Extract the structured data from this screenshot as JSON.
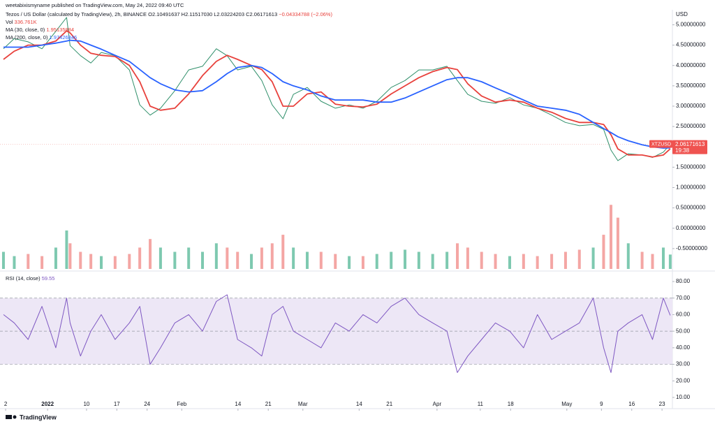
{
  "header": {
    "publisher": "weetabixismyname published on TradingView.com, May 24, 2022 09:40 UTC",
    "footer": "TradingView"
  },
  "chart_data": [
    {
      "type": "line",
      "title": "Tezos / US Dollar (calculated by TradingView), 2h, BINANCE",
      "ohlc": "O2.10491637 H2.11517030 L2.03224203 C2.06171613",
      "change": "−0.04334788 (−2.06%)",
      "y_label": "USD",
      "x": [
        -10.2,
        -7.7,
        -4.5,
        -1.3,
        1.9,
        4.4,
        5.2,
        7.6,
        10.0,
        12.4,
        15.6,
        18.9,
        21.3,
        23.7,
        26.1,
        29.4,
        32.6,
        35.8,
        39.0,
        41.5,
        43.9,
        47.1,
        49.5,
        51.9,
        54.4,
        56.8,
        60.0,
        63.2,
        66.5,
        69.7,
        72.9,
        76.1,
        79.4,
        82.6,
        85.8,
        89.0,
        92.3,
        94.7,
        97.1,
        100.3,
        103.5,
        106.8,
        110.0,
        113.2,
        116.5,
        119.7,
        122.9,
        126.1,
        128.5,
        130.2,
        131.8,
        134.2,
        137.4,
        139.8,
        142.3,
        143.9
      ],
      "xlim": [
        -11,
        144.4
      ],
      "xticks": [
        {
          "value": -9.7,
          "label": "2"
        },
        {
          "value": 0,
          "label": "2022"
        },
        {
          "value": 9,
          "label": "10"
        },
        {
          "value": 16,
          "label": "17"
        },
        {
          "value": 23,
          "label": "24"
        },
        {
          "value": 31,
          "label": "Feb"
        },
        {
          "value": 44,
          "label": "14"
        },
        {
          "value": 51,
          "label": "21"
        },
        {
          "value": 59,
          "label": "Mar"
        },
        {
          "value": 72,
          "label": "14"
        },
        {
          "value": 79,
          "label": "21"
        },
        {
          "value": 90,
          "label": "Apr"
        },
        {
          "value": 100,
          "label": "11"
        },
        {
          "value": 107,
          "label": "18"
        },
        {
          "value": 120,
          "label": "May"
        },
        {
          "value": 128,
          "label": "9"
        },
        {
          "value": 135,
          "label": "16"
        },
        {
          "value": 142,
          "label": "23"
        }
      ],
      "ylim": [
        -1,
        5.3
      ],
      "yticks": [
        {
          "value": 5,
          "label": "5.00000000"
        },
        {
          "value": 4.5,
          "label": "4.50000000"
        },
        {
          "value": 4,
          "label": "4.00000000"
        },
        {
          "value": 3.5,
          "label": "3.50000000"
        },
        {
          "value": 3,
          "label": "3.00000000"
        },
        {
          "value": 2.5,
          "label": "2.50000000"
        },
        {
          "value": 2,
          "label": "2.00000000"
        },
        {
          "value": 1.5,
          "label": "1.50000000"
        },
        {
          "value": 1,
          "label": "1.00000000"
        },
        {
          "value": 0.5,
          "label": "0.50000000"
        },
        {
          "value": 0,
          "label": "0.00000000"
        },
        {
          "value": -0.5,
          "label": "-0.50000000"
        }
      ],
      "series": [
        {
          "name": "XTZUSD",
          "color": "#2f8f6a",
          "last_label": "2.06171613",
          "tag_time": "19:38",
          "values": [
            4.41,
            4.66,
            4.58,
            4.41,
            4.84,
            5.18,
            4.49,
            4.24,
            4.06,
            4.32,
            4.24,
            3.89,
            3.03,
            2.78,
            2.95,
            3.38,
            3.89,
            3.98,
            4.41,
            4.24,
            3.89,
            3.98,
            3.63,
            3.03,
            2.69,
            3.29,
            3.46,
            3.12,
            2.95,
            3.03,
            2.95,
            3.12,
            3.46,
            3.63,
            3.89,
            3.89,
            3.98,
            3.63,
            3.29,
            3.12,
            3.07,
            3.21,
            3.03,
            2.95,
            2.78,
            2.6,
            2.52,
            2.55,
            2.43,
            1.92,
            1.66,
            1.83,
            1.8,
            1.74,
            1.87,
            2.06171613
          ]
        },
        {
          "name": "MA (30, close, 0)",
          "color": "#e8413c",
          "last_label": "1.95135884",
          "values": [
            4.15,
            4.35,
            4.5,
            4.5,
            4.6,
            4.85,
            4.8,
            4.5,
            4.3,
            4.25,
            4.22,
            4.0,
            3.6,
            3.0,
            2.9,
            2.95,
            3.3,
            3.75,
            4.1,
            4.25,
            4.15,
            4.0,
            3.9,
            3.6,
            3.0,
            3.0,
            3.3,
            3.35,
            3.05,
            3.0,
            2.98,
            3.05,
            3.3,
            3.5,
            3.7,
            3.85,
            3.95,
            3.9,
            3.55,
            3.25,
            3.1,
            3.15,
            3.1,
            2.95,
            2.85,
            2.7,
            2.6,
            2.6,
            2.55,
            2.3,
            1.95,
            1.8,
            1.8,
            1.75,
            1.8,
            1.95135884
          ]
        },
        {
          "name": "MA (200, close, 0)",
          "color": "#2962ff",
          "last_label": "1.97426846",
          "values": [
            4.45,
            4.45,
            4.45,
            4.5,
            4.55,
            4.6,
            4.62,
            4.6,
            4.5,
            4.4,
            4.25,
            4.1,
            3.9,
            3.7,
            3.55,
            3.4,
            3.35,
            3.38,
            3.6,
            3.8,
            3.95,
            4.0,
            3.95,
            3.8,
            3.6,
            3.5,
            3.4,
            3.25,
            3.15,
            3.15,
            3.15,
            3.1,
            3.1,
            3.2,
            3.35,
            3.5,
            3.65,
            3.7,
            3.7,
            3.6,
            3.45,
            3.3,
            3.15,
            3.0,
            2.95,
            2.9,
            2.8,
            2.6,
            2.45,
            2.35,
            2.25,
            2.15,
            2.05,
            2.0,
            1.97,
            1.97426846
          ]
        }
      ],
      "volume": {
        "name": "Vol",
        "value_label": "336.761K",
        "lim": [
          0,
          6000
        ],
        "colors": [
          "#7ec9b0",
          "#f4a6a4"
        ],
        "values": [
          400,
          300,
          350,
          300,
          500,
          900,
          600,
          400,
          350,
          300,
          300,
          350,
          500,
          700,
          500,
          400,
          500,
          400,
          600,
          500,
          400,
          350,
          500,
          600,
          800,
          500,
          400,
          400,
          350,
          300,
          300,
          350,
          400,
          450,
          400,
          350,
          400,
          600,
          500,
          400,
          350,
          300,
          350,
          300,
          350,
          400,
          450,
          500,
          800,
          1500,
          1200,
          600,
          400,
          350,
          500,
          336.761
        ]
      }
    },
    {
      "type": "line",
      "title": "RSI (14, close)",
      "last_label": "59.55",
      "color": "#7e57c2",
      "band": [
        30,
        70
      ],
      "mid": 50,
      "band_color": "#ede7f6",
      "ylim": [
        4.5,
        85.5
      ],
      "yticks": [
        {
          "value": 80,
          "label": "80.00"
        },
        {
          "value": 70,
          "label": "70.00"
        },
        {
          "value": 60,
          "label": "60.00"
        },
        {
          "value": 50,
          "label": "50.00"
        },
        {
          "value": 40,
          "label": "40.00"
        },
        {
          "value": 30,
          "label": "30.00"
        },
        {
          "value": 20,
          "label": "20.00"
        },
        {
          "value": 10,
          "label": "10.00"
        }
      ],
      "values": [
        60,
        55,
        45,
        65,
        40,
        70,
        55,
        35,
        50,
        60,
        45,
        55,
        65,
        30,
        40,
        55,
        60,
        50,
        68,
        72,
        45,
        40,
        35,
        60,
        65,
        50,
        45,
        40,
        55,
        50,
        60,
        55,
        65,
        70,
        60,
        55,
        50,
        25,
        35,
        45,
        55,
        50,
        40,
        60,
        45,
        50,
        55,
        70,
        40,
        25,
        50,
        55,
        60,
        45,
        70,
        59.55
      ]
    }
  ]
}
